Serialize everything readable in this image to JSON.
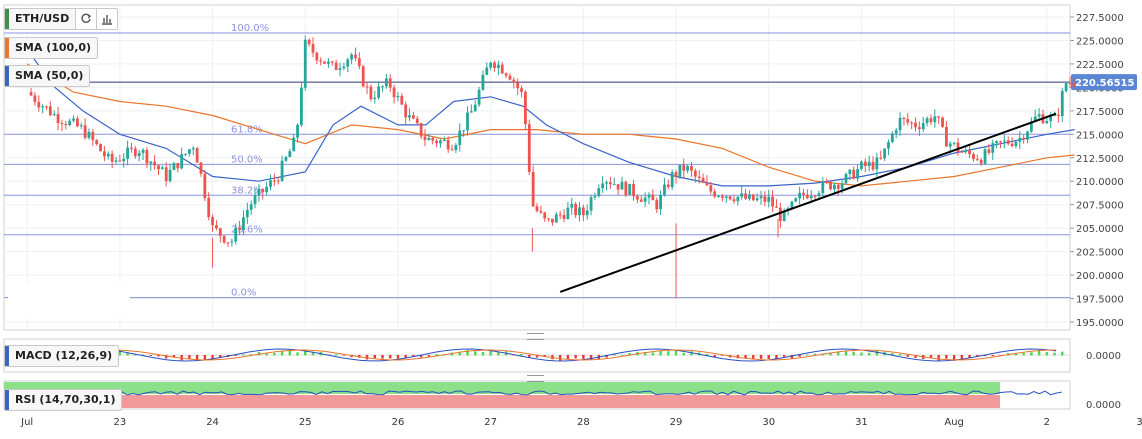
{
  "symbol": {
    "label": "ETH/USD"
  },
  "indicators": {
    "sma100": {
      "label": "SMA (100,0)",
      "color": "#e8762b"
    },
    "sma50": {
      "label": "SMA (50,0)",
      "color": "#3a64c8"
    },
    "macd": {
      "label": "MACD (12,26,9)"
    },
    "rsi": {
      "label": "RSI (14,70,30,1)"
    }
  },
  "icons": {
    "refresh": "refresh-icon",
    "chart_type": "bar-chart-icon"
  },
  "colors": {
    "bull": "#26a69a",
    "bear": "#ef5350",
    "fib": "#8a93e0",
    "trendline": "#000000",
    "price_badge": "#5a86d6",
    "rsi_over": "#8de08a",
    "rsi_under": "#f29a9a"
  },
  "chart_data": {
    "type": "candlestick",
    "price_axis": {
      "min": 195.0,
      "max": 227.5,
      "ticks": [
        "227.5000",
        "225.0000",
        "222.5000",
        "220.0000",
        "217.5000",
        "215.0000",
        "212.5000",
        "210.0000",
        "207.5000",
        "205.0000",
        "202.5000",
        "200.0000",
        "197.5000",
        "195.0000"
      ]
    },
    "current_price": "220.56515",
    "x_axis": {
      "tick_labels": [
        "Jul",
        "23",
        "24",
        "25",
        "26",
        "27",
        "28",
        "29",
        "30",
        "31",
        "Aug",
        "2",
        "3"
      ]
    },
    "fibonacci": [
      {
        "label": "100.0%",
        "value": 225.8
      },
      {
        "label": "61.8%",
        "value": 215.0
      },
      {
        "label": "50.0%",
        "value": 211.8
      },
      {
        "label": "38.2%",
        "value": 208.5
      },
      {
        "label": "23.6%",
        "value": 204.3
      },
      {
        "label": "0.0%",
        "value": 197.6
      }
    ],
    "trendline": {
      "from": {
        "day": 27.75,
        "value": 198.2
      },
      "to": {
        "day": 33.1,
        "value": 217.2
      }
    },
    "price_path": [
      [
        22.0,
        219.5
      ],
      [
        22.3,
        217.0
      ],
      [
        22.6,
        215.5
      ],
      [
        22.9,
        212.0
      ],
      [
        23.2,
        213.5
      ],
      [
        23.5,
        210.5
      ],
      [
        23.8,
        214.0
      ],
      [
        24.0,
        205.0
      ],
      [
        24.2,
        203.5
      ],
      [
        24.4,
        207.5
      ],
      [
        24.7,
        210.5
      ],
      [
        24.9,
        214.5
      ],
      [
        25.0,
        224.5
      ],
      [
        25.3,
        222.0
      ],
      [
        25.5,
        223.5
      ],
      [
        25.7,
        219.0
      ],
      [
        25.9,
        220.5
      ],
      [
        26.1,
        217.0
      ],
      [
        26.3,
        214.5
      ],
      [
        26.6,
        214.0
      ],
      [
        26.8,
        217.5
      ],
      [
        27.0,
        223.0
      ],
      [
        27.2,
        221.5
      ],
      [
        27.35,
        219.0
      ],
      [
        27.45,
        207.5
      ],
      [
        27.6,
        205.5
      ],
      [
        27.85,
        207.0
      ],
      [
        28.0,
        206.5
      ],
      [
        28.2,
        210.5
      ],
      [
        28.5,
        209.0
      ],
      [
        28.8,
        207.5
      ],
      [
        28.95,
        210.5
      ],
      [
        29.1,
        211.5
      ],
      [
        29.35,
        209.0
      ],
      [
        29.6,
        208.5
      ],
      [
        29.8,
        208.0
      ],
      [
        30.0,
        208.0
      ],
      [
        30.15,
        206.0
      ],
      [
        30.35,
        208.5
      ],
      [
        30.6,
        209.5
      ],
      [
        30.8,
        210.0
      ],
      [
        31.0,
        211.5
      ],
      [
        31.2,
        212.0
      ],
      [
        31.4,
        216.5
      ],
      [
        31.6,
        216.0
      ],
      [
        31.8,
        217.0
      ],
      [
        31.9,
        214.5
      ],
      [
        32.1,
        213.0
      ],
      [
        32.3,
        212.5
      ],
      [
        32.5,
        214.0
      ],
      [
        32.7,
        214.5
      ],
      [
        32.9,
        217.0
      ],
      [
        33.1,
        216.5
      ],
      [
        33.2,
        220.5
      ],
      [
        33.3,
        220.6
      ]
    ],
    "sma100_path": [
      [
        22.0,
        222.5
      ],
      [
        22.5,
        219.5
      ],
      [
        23.0,
        218.5
      ],
      [
        23.5,
        218.0
      ],
      [
        24.0,
        217.0
      ],
      [
        24.5,
        215.5
      ],
      [
        25.0,
        214.0
      ],
      [
        25.5,
        216.0
      ],
      [
        26.0,
        215.5
      ],
      [
        26.5,
        214.5
      ],
      [
        27.0,
        215.5
      ],
      [
        27.5,
        215.5
      ],
      [
        28.0,
        215.0
      ],
      [
        28.5,
        215.0
      ],
      [
        29.0,
        214.5
      ],
      [
        29.5,
        213.5
      ],
      [
        30.0,
        211.5
      ],
      [
        30.5,
        210.0
      ],
      [
        31.0,
        209.5
      ],
      [
        31.5,
        210.0
      ],
      [
        32.0,
        210.5
      ],
      [
        32.5,
        211.5
      ],
      [
        33.0,
        212.5
      ],
      [
        33.3,
        212.8
      ]
    ],
    "sma50_path": [
      [
        22.0,
        224.0
      ],
      [
        22.3,
        220.0
      ],
      [
        22.6,
        217.5
      ],
      [
        23.0,
        215.0
      ],
      [
        23.5,
        213.5
      ],
      [
        24.0,
        210.5
      ],
      [
        24.5,
        210.0
      ],
      [
        25.0,
        211.0
      ],
      [
        25.3,
        216.0
      ],
      [
        25.6,
        218.0
      ],
      [
        26.0,
        216.0
      ],
      [
        26.3,
        216.0
      ],
      [
        26.6,
        218.5
      ],
      [
        27.0,
        219.0
      ],
      [
        27.35,
        218.0
      ],
      [
        27.6,
        216.0
      ],
      [
        28.0,
        214.0
      ],
      [
        28.5,
        212.0
      ],
      [
        29.0,
        210.5
      ],
      [
        29.5,
        209.5
      ],
      [
        30.0,
        209.5
      ],
      [
        30.5,
        209.8
      ],
      [
        31.0,
        210.5
      ],
      [
        31.5,
        211.5
      ],
      [
        32.0,
        213.0
      ],
      [
        32.5,
        214.0
      ],
      [
        33.0,
        215.0
      ],
      [
        33.3,
        215.5
      ]
    ],
    "macd": {
      "axis_label": "0.0000"
    },
    "rsi": {
      "axis_label": "0.0000"
    }
  }
}
